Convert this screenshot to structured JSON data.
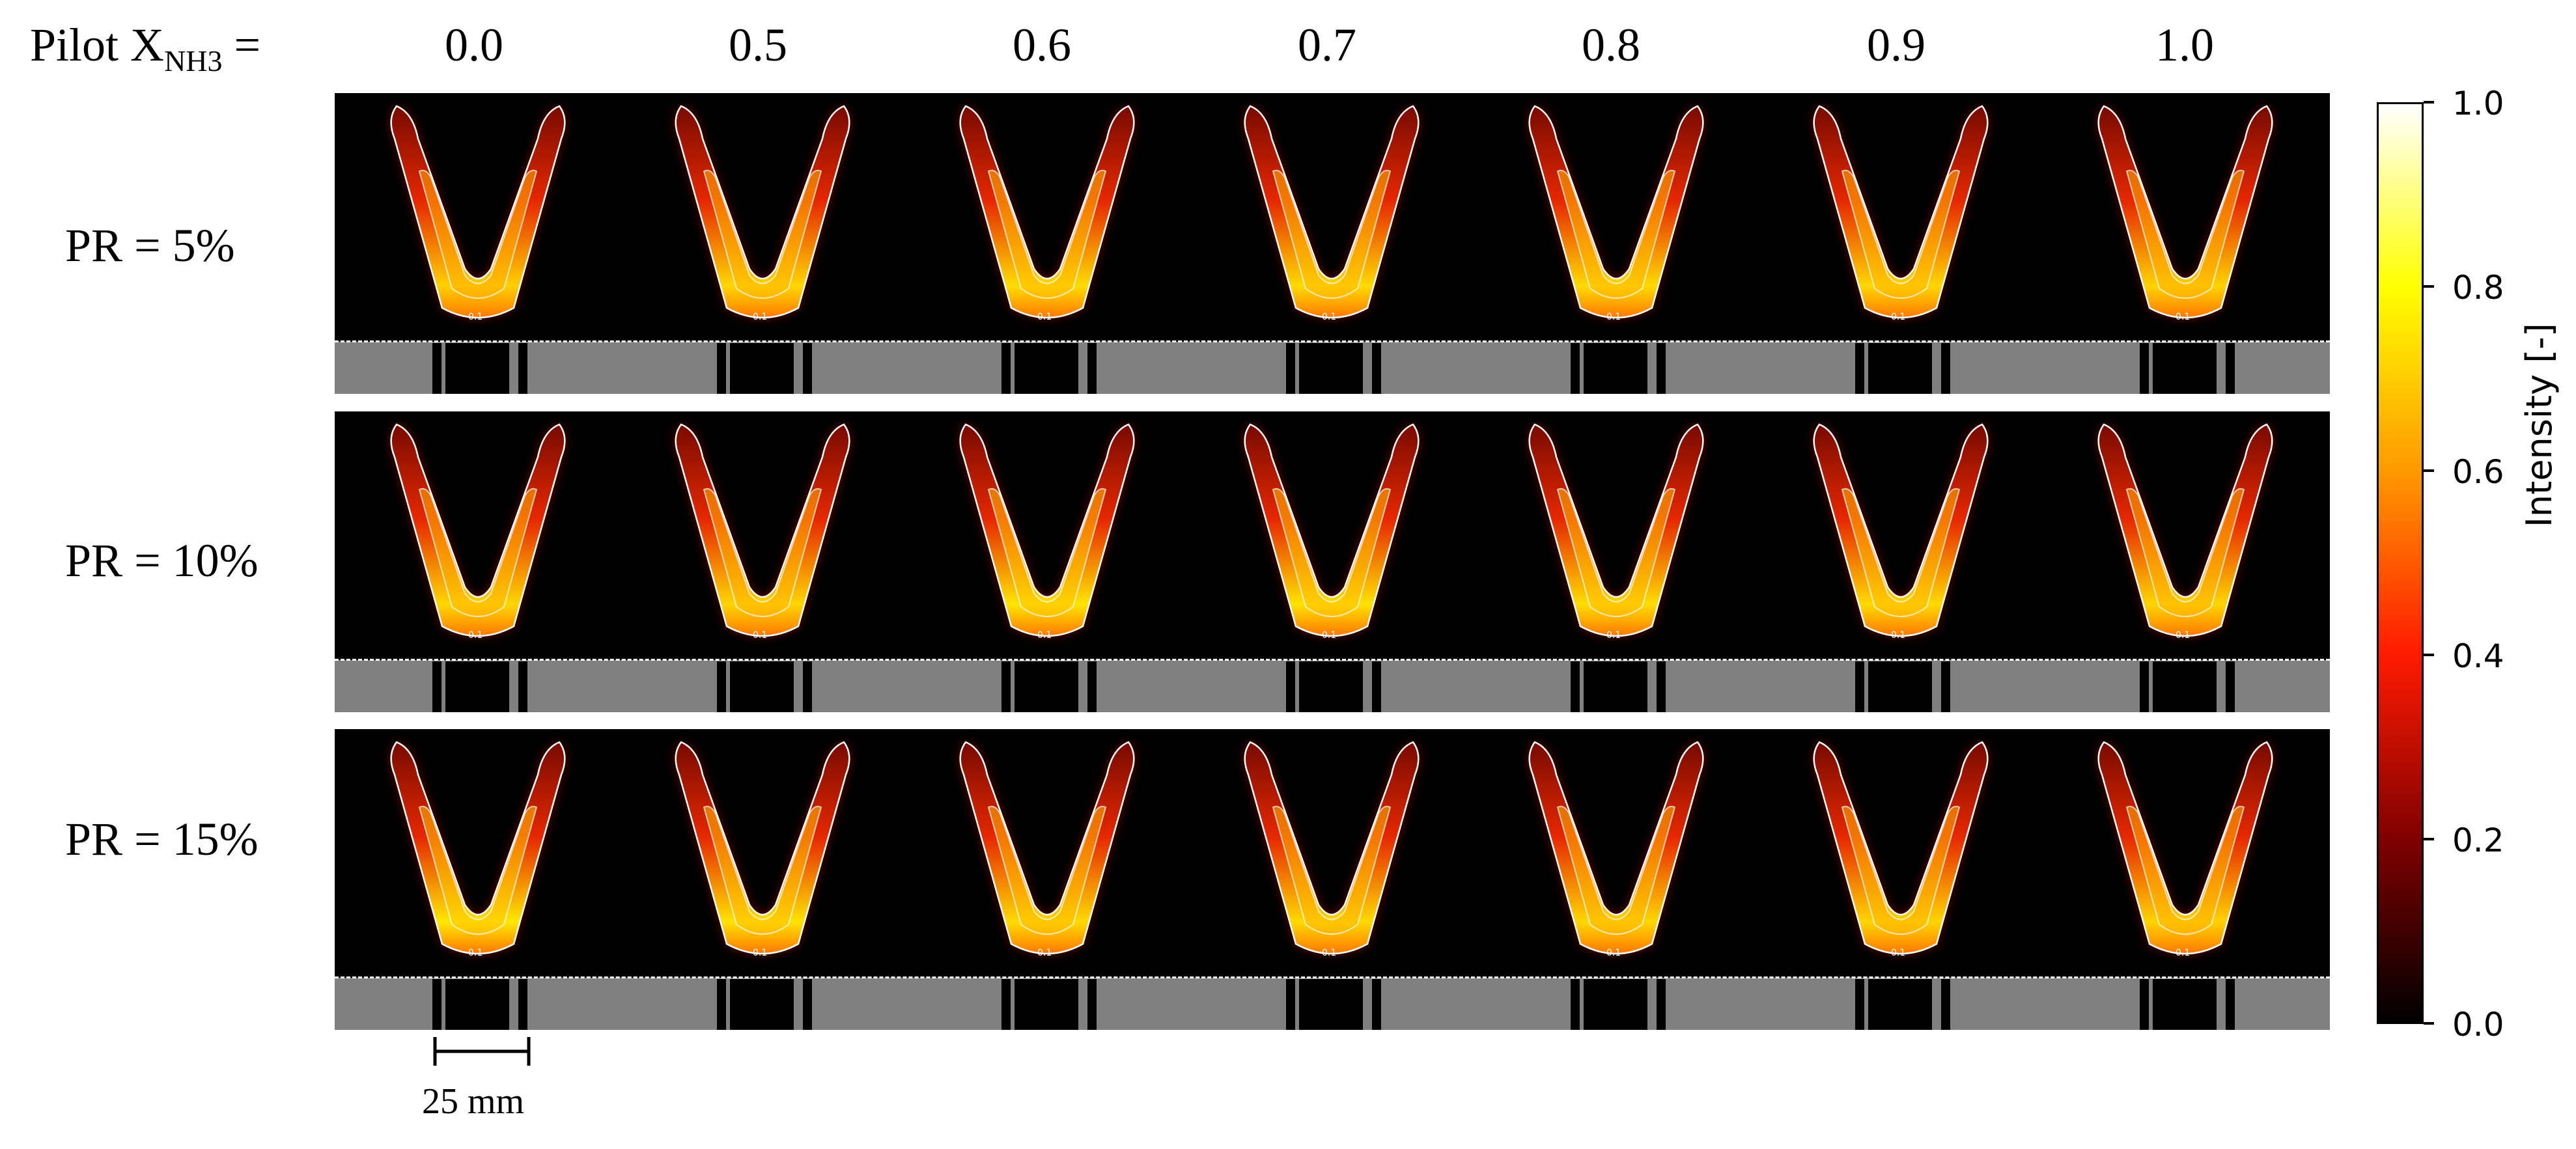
{
  "header": {
    "prefix_main": "Pilot X",
    "prefix_sub": "NH3",
    "prefix_equals": " ="
  },
  "columns": [
    "0.0",
    "0.5",
    "0.6",
    "0.7",
    "0.8",
    "0.9",
    "1.0"
  ],
  "rows": [
    "PR = 5%",
    "PR = 10%",
    "PR = 15%"
  ],
  "panel_intensity": [
    [
      0.55,
      0.62,
      0.68,
      0.66,
      0.66,
      0.62,
      0.58
    ],
    [
      0.62,
      0.6,
      0.75,
      0.72,
      0.68,
      0.65,
      0.6
    ],
    [
      0.78,
      0.72,
      0.66,
      0.64,
      0.62,
      0.6,
      0.58
    ]
  ],
  "contour_label": "0.1",
  "colorbar": {
    "title": "Intensity [-]",
    "ticks": [
      "1.0",
      "0.8",
      "0.6",
      "0.4",
      "0.2",
      "0.0"
    ],
    "colors": [
      "#ffffff",
      "#ffff00",
      "#ff9900",
      "#ff1a00",
      "#800000",
      "#000000"
    ]
  },
  "scalebar": {
    "label": "25 mm"
  }
}
